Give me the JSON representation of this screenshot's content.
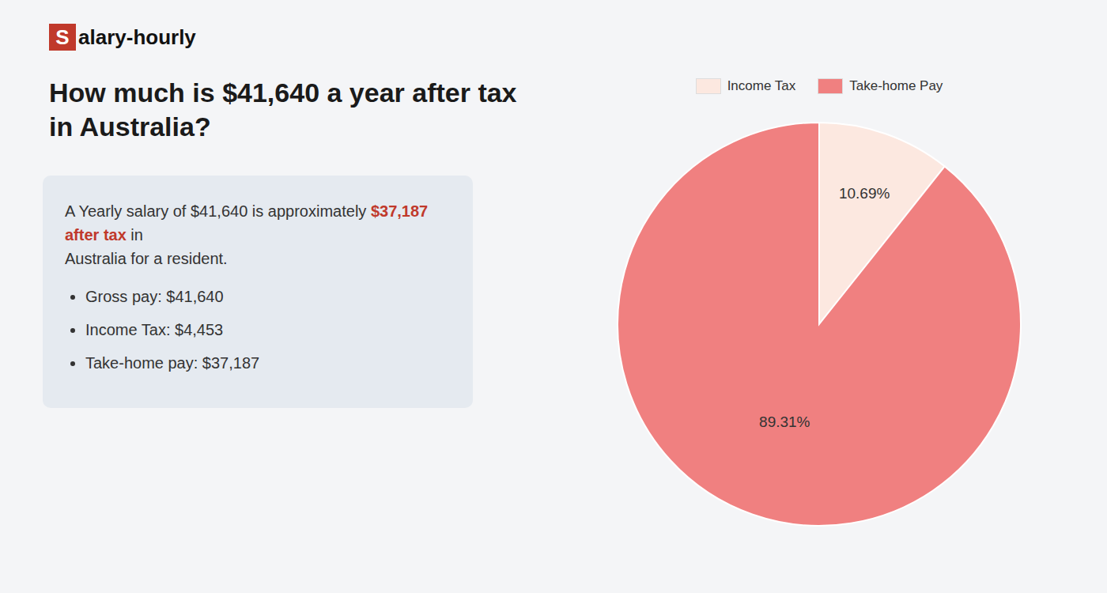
{
  "chart_data": {
    "type": "pie",
    "title": "How much is $41,640 a year after tax in Australia?",
    "annotations": [
      {
        "text": "S",
        "color": "#c0392b"
      },
      {
        "text": "alary-hourly"
      },
      {
        "text": "A Yearly salary of $41,640 is approximately "
      },
      {
        "text": "$37,187 after tax",
        "color": "#c0392b"
      },
      {
        "text": " in"
      },
      {
        "text": "Australia for a resident."
      },
      {
        "text": "Gross pay: $41,640"
      },
      {
        "text": "Income Tax: $4,453"
      },
      {
        "text": "Take-home pay: $37,187"
      }
    ],
    "categories": [
      "Income Tax",
      "Take-home Pay"
    ],
    "values": [
      10.69,
      89.31
    ],
    "value_labels": [
      "10.69%",
      "89.31%"
    ],
    "colors": [
      "#fce8e0",
      "#f08080"
    ],
    "data_labels": true,
    "legend": "top"
  }
}
